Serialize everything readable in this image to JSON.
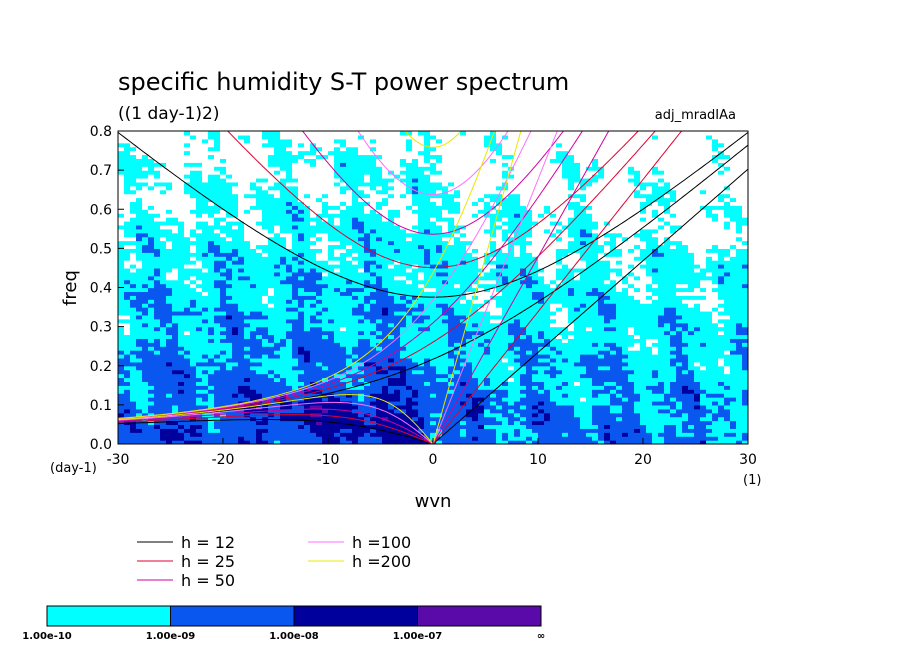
{
  "chart_data": {
    "type": "heatmap",
    "title": "specific humidity S-T power spectrum",
    "subtitle": "((1 day-1)2)",
    "experiment": "adj_mradIAa",
    "xlabel": "wvn",
    "ylabel": "freq",
    "x_unit": "(1)",
    "y_unit": "(day-1)",
    "xlim": [
      -30,
      30
    ],
    "ylim": [
      0,
      0.8
    ],
    "x_ticks": [
      "-30",
      "-20",
      "-10",
      "0",
      "10",
      "20",
      "30"
    ],
    "y_ticks": [
      "0.0",
      "0.1",
      "0.2",
      "0.3",
      "0.4",
      "0.5",
      "0.6",
      "0.7",
      "0.8"
    ],
    "contour_levels": [
      "1.00e-10",
      "1.00e-09",
      "1.00e-08",
      "1.00e-07",
      "∞"
    ],
    "contour_colors": [
      "#ffffff",
      "#00ffff",
      "#0a57f0",
      "#00009c",
      "#5a0aa8"
    ],
    "dispersion_curves": [
      {
        "label": "h = 12",
        "h": 12,
        "color": "#000000"
      },
      {
        "label": "h = 25",
        "h": 25,
        "color": "#e00030"
      },
      {
        "label": "h = 50",
        "h": 50,
        "color": "#d000a0"
      },
      {
        "label": "h =100",
        "h": 100,
        "color": "#ff70ff"
      },
      {
        "label": "h =200",
        "h": 200,
        "color": "#e8e800"
      }
    ]
  }
}
